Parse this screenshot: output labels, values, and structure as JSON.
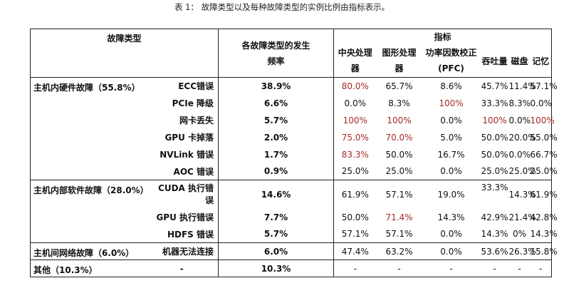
{
  "caption": "表 1：  故障类型以及每种故障类型的实例比例由指标表示。",
  "header": {
    "fault_type": "故障类型",
    "rate": "各故障类型的发生频率",
    "metrics": "指标",
    "cols": [
      "中央处理器",
      "图形处理器",
      "功率因数校正 (PFC)",
      "吞吐量",
      "磁盘",
      "记忆"
    ]
  },
  "groups": [
    {
      "name": "主机内硬件故障（55.8%）",
      "rows": [
        {
          "sub": "ECC错误",
          "rate": "38.9%",
          "cpu": "80.0%",
          "gpu": "65.7%",
          "pfc": "8.6%",
          "thr": "45.7%",
          "disk": "11.4%",
          "mem": "57.1%"
        },
        {
          "sub": "PCIe 降级",
          "rate": "6.6%",
          "cpu": "0.0%",
          "gpu": "8.3%",
          "pfc": "100%",
          "thr": "33.3%",
          "disk": "8.3%",
          "mem": "0.0%"
        },
        {
          "sub": "网卡丢失",
          "rate": "5.7%",
          "cpu": "100%",
          "gpu": "100%",
          "pfc": "0.0%",
          "thr": "100%",
          "disk": "0.0%",
          "mem": "100%"
        },
        {
          "sub": "GPU 卡掉落",
          "rate": "2.0%",
          "cpu": "75.0%",
          "gpu": "70.0%",
          "pfc": "5.0%",
          "thr": "50.0%",
          "disk": "20.0%",
          "mem": "55.0%"
        },
        {
          "sub": "NVLink 错误",
          "rate": "1.7%",
          "cpu": "83.3%",
          "gpu": "50.0%",
          "pfc": "16.7%",
          "thr": "50.0%",
          "disk": "0.0%",
          "mem": "66.7%"
        },
        {
          "sub": "AOC 错误",
          "rate": "0.9%",
          "cpu": "25.0%",
          "gpu": "25.0%",
          "pfc": "0.0%",
          "thr": "25.0%",
          "disk": "25.0%",
          "mem": "25.0%"
        }
      ]
    },
    {
      "name": "主机内部软件故障（28.0%）",
      "rows": [
        {
          "sub": "CUDA 执行错误",
          "rate": "14.6%",
          "cpu": "61.9%",
          "gpu": "57.1%",
          "pfc": "19.0%",
          "thr": "33.3%",
          "disk": "14.3%",
          "mem": "61.9%"
        },
        {
          "sub": "GPU 执行错误",
          "rate": "7.7%",
          "cpu": "50.0%",
          "gpu": "71.4%",
          "pfc": "14.3%",
          "thr": "42.9%",
          "disk": "21.4%",
          "mem": "42.8%"
        },
        {
          "sub": "HDFS 错误",
          "rate": "5.7%",
          "cpu": "57.1%",
          "gpu": "57.1%",
          "pfc": "0.0%",
          "thr": "14.3%",
          "disk": "0%",
          "mem": "14.3%"
        }
      ]
    },
    {
      "name": "主机间网络故障（6.0%）",
      "rows": [
        {
          "sub": "机器无法连接",
          "rate": "6.0%",
          "cpu": "47.4%",
          "gpu": "63.2%",
          "pfc": "0.0%",
          "thr": "53.6%",
          "disk": "26.3%",
          "mem": "15.8%"
        }
      ]
    },
    {
      "name": "其他（10.3%）",
      "rows": [
        {
          "sub": "-",
          "rate": "10.3%",
          "cpu": "-",
          "gpu": "-",
          "pfc": "-",
          "thr": "-",
          "disk": "-",
          "mem": "-"
        }
      ]
    }
  ],
  "highlight_color": "#a52a2a"
}
